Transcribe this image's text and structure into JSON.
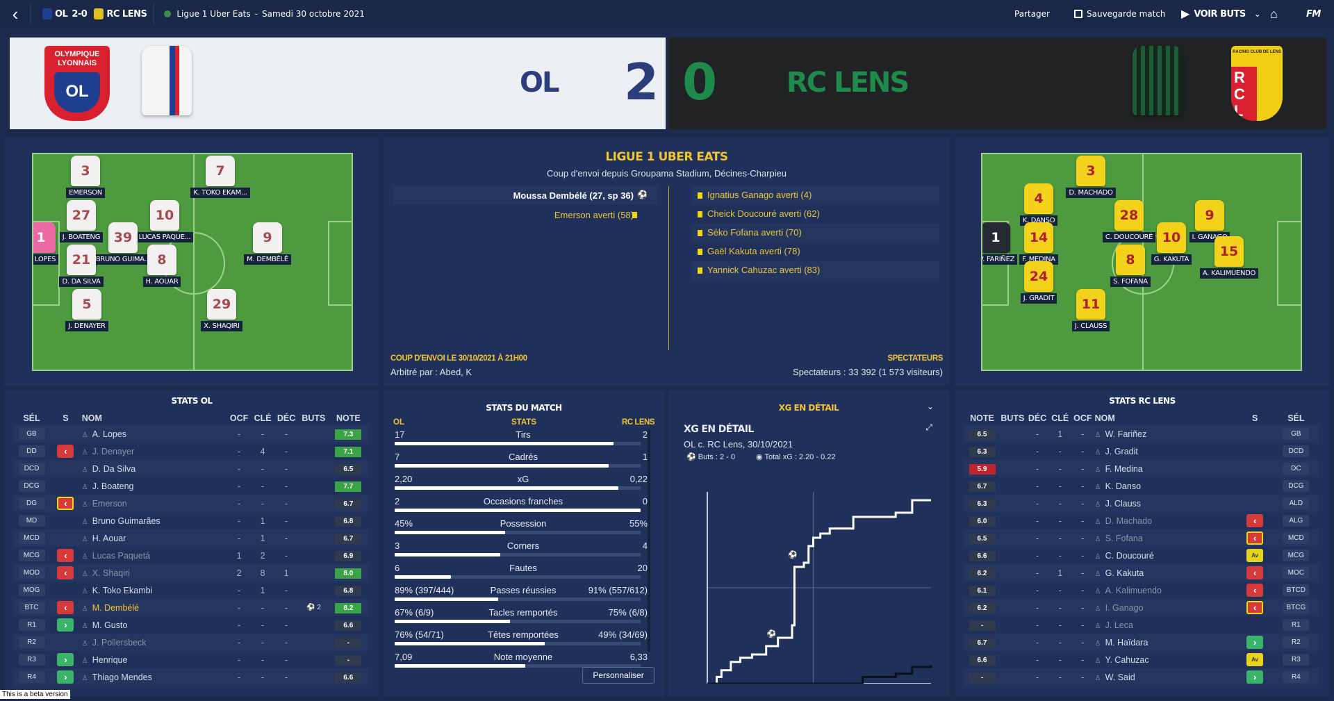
{
  "topbar": {
    "home_short": "OL",
    "score": "2-0",
    "away_short": "RC LENS",
    "competition": "Ligue 1 Uber Eats",
    "date": "Samedi 30 octobre 2021",
    "share": "Partager",
    "save": "Sauvegarde match",
    "watch": "VOIR BUTS",
    "fm": "FM"
  },
  "scoreboard": {
    "home_name": "OL",
    "home_score": "2",
    "away_score": "0",
    "away_name": "RC LENS",
    "home_crest": "OLYMPIQUE LYONNAIS",
    "away_crest": "RACING CLUB DE LENS"
  },
  "colors": {
    "bg": "#1b2a4d",
    "panel": "#1f305a",
    "gold": "#f4c430",
    "pitch": "#4d9a3f",
    "lens_green": "#1e8a4c"
  },
  "home_lineup": [
    {
      "n": "3",
      "name": "EMERSON"
    },
    {
      "n": "7",
      "name": "K. TOKO EKAM..."
    },
    {
      "n": "27",
      "name": "J. BOATENG"
    },
    {
      "n": "10",
      "name": "LUCAS PAQUE..."
    },
    {
      "n": "39",
      "name": "BRUNO GUIMA..."
    },
    {
      "n": "1",
      "name": "A. LOPES"
    },
    {
      "n": "21",
      "name": "D. DA SILVA"
    },
    {
      "n": "8",
      "name": "H. AOUAR"
    },
    {
      "n": "9",
      "name": "M. DEMBÉLÉ"
    },
    {
      "n": "5",
      "name": "J. DENAYER"
    },
    {
      "n": "29",
      "name": "X. SHAQIRI"
    }
  ],
  "away_lineup": [
    {
      "n": "3",
      "name": "D. MACHADO"
    },
    {
      "n": "4",
      "name": "K. DANSO"
    },
    {
      "n": "28",
      "name": "C. DOUCOURÉ"
    },
    {
      "n": "9",
      "name": "I. GANAGO"
    },
    {
      "n": "1",
      "name": "W. FARIÑEZ"
    },
    {
      "n": "14",
      "name": "F. MEDINA"
    },
    {
      "n": "10",
      "name": "G. KAKUTA"
    },
    {
      "n": "15",
      "name": "A. KALIMUENDO"
    },
    {
      "n": "8",
      "name": "S. FOFANA"
    },
    {
      "n": "24",
      "name": "J. GRADIT"
    },
    {
      "n": "11",
      "name": "J. CLAUSS"
    }
  ],
  "match_info": {
    "title": "LIGUE 1 UBER EATS",
    "subtitle": "Coup d'envoi depuis Groupama Stadium, Décines-Charpieu",
    "home_events": [
      "Moussa Dembélé (27, sp 36)",
      "Emerson averti (58)"
    ],
    "away_events": [
      "Ignatius Ganago averti (4)",
      "Cheick Doucouré averti (62)",
      "Séko Fofana averti (70)",
      "Gaël Kakuta averti (78)",
      "Yannick Cahuzac averti (83)"
    ],
    "kickoff_label": "COUP D'ENVOI LE 30/10/2021 À 21H00",
    "referee": "Arbitré par : Abed, K",
    "spect_label": "SPECTATEURS",
    "spectators": "Spectateurs : 33 392 (1 573 visiteurs)"
  },
  "home_stats": {
    "title": "STATS OL",
    "cols": [
      "SÉL",
      "S",
      "NOM",
      "OCF",
      "CLÉ",
      "DÉC",
      "BUTS",
      "NOTE"
    ],
    "rows": [
      {
        "pos": "GB",
        "arrow": "",
        "name": "A. Lopes",
        "ocf": "-",
        "cle": "-",
        "dec": "-",
        "buts": "",
        "note": "7.3",
        "nc": "g",
        "dim": false
      },
      {
        "pos": "DD",
        "arrow": "out",
        "name": "J. Denayer",
        "ocf": "-",
        "cle": "4",
        "dec": "-",
        "buts": "",
        "note": "7.1",
        "nc": "g",
        "dim": true
      },
      {
        "pos": "DCD",
        "arrow": "",
        "name": "D. Da Silva",
        "ocf": "-",
        "cle": "-",
        "dec": "-",
        "buts": "",
        "note": "6.5",
        "nc": "d",
        "dim": false
      },
      {
        "pos": "DCG",
        "arrow": "",
        "name": "J. Boateng",
        "ocf": "-",
        "cle": "-",
        "dec": "-",
        "buts": "",
        "note": "7.7",
        "nc": "g",
        "dim": false
      },
      {
        "pos": "DG",
        "arrow": "outy",
        "name": "Emerson",
        "ocf": "-",
        "cle": "-",
        "dec": "-",
        "buts": "",
        "note": "6.7",
        "nc": "d",
        "dim": true
      },
      {
        "pos": "MD",
        "arrow": "",
        "name": "Bruno Guimarães",
        "ocf": "-",
        "cle": "1",
        "dec": "-",
        "buts": "",
        "note": "6.8",
        "nc": "d",
        "dim": false
      },
      {
        "pos": "MCD",
        "arrow": "",
        "name": "H. Aouar",
        "ocf": "-",
        "cle": "1",
        "dec": "-",
        "buts": "",
        "note": "6.7",
        "nc": "d",
        "dim": false
      },
      {
        "pos": "MCG",
        "arrow": "out",
        "name": "Lucas Paquetá",
        "ocf": "1",
        "cle": "2",
        "dec": "-",
        "buts": "",
        "note": "6.9",
        "nc": "d",
        "dim": true
      },
      {
        "pos": "MOD",
        "arrow": "out",
        "name": "X. Shaqiri",
        "ocf": "2",
        "cle": "8",
        "dec": "1",
        "buts": "",
        "note": "8.0",
        "nc": "g",
        "dim": true
      },
      {
        "pos": "MOG",
        "arrow": "",
        "name": "K. Toko Ekambi",
        "ocf": "-",
        "cle": "1",
        "dec": "-",
        "buts": "",
        "note": "6.8",
        "nc": "d",
        "dim": false
      },
      {
        "pos": "BTC",
        "arrow": "out",
        "name": "M. Dembélé",
        "ocf": "-",
        "cle": "-",
        "dec": "-",
        "buts": "2",
        "note": "8.2",
        "nc": "g",
        "dim": false,
        "gold": true
      },
      {
        "pos": "R1",
        "arrow": "in",
        "name": "M. Gusto",
        "ocf": "-",
        "cle": "-",
        "dec": "-",
        "buts": "",
        "note": "6.6",
        "nc": "d",
        "dim": false
      },
      {
        "pos": "R2",
        "arrow": "",
        "name": "J. Pollersbeck",
        "ocf": "-",
        "cle": "-",
        "dec": "-",
        "buts": "",
        "note": "-",
        "nc": "d",
        "dim": true
      },
      {
        "pos": "R3",
        "arrow": "in",
        "name": "Henrique",
        "ocf": "-",
        "cle": "-",
        "dec": "-",
        "buts": "",
        "note": "-",
        "nc": "d",
        "dim": false
      },
      {
        "pos": "R4",
        "arrow": "in",
        "name": "Thiago Mendes",
        "ocf": "-",
        "cle": "-",
        "dec": "-",
        "buts": "",
        "note": "6.6",
        "nc": "d",
        "dim": false
      }
    ]
  },
  "match_stats": {
    "title": "STATS DU MATCH",
    "home": "OL",
    "label": "STATS",
    "away": "RC LENS",
    "customize": "Personnaliser",
    "rows": [
      {
        "label": "Tirs",
        "h": "17",
        "a": "2",
        "hf": 0.89
      },
      {
        "label": "Cadrés",
        "h": "7",
        "a": "1",
        "hf": 0.87
      },
      {
        "label": "xG",
        "h": "2,20",
        "a": "0,22",
        "hf": 0.91
      },
      {
        "label": "Occasions franches",
        "h": "2",
        "a": "0",
        "hf": 1.0
      },
      {
        "label": "Possession",
        "h": "45%",
        "a": "55%",
        "hf": 0.45
      },
      {
        "label": "Corners",
        "h": "3",
        "a": "4",
        "hf": 0.43
      },
      {
        "label": "Fautes",
        "h": "6",
        "a": "20",
        "hf": 0.23
      },
      {
        "label": "Passes réussies",
        "h": "89% (397/444)",
        "a": "91% (557/612)",
        "hf": 0.42
      },
      {
        "label": "Tacles remportés",
        "h": "67% (6/9)",
        "a": "75% (6/8)",
        "hf": 0.47
      },
      {
        "label": "Têtes remportées",
        "h": "76% (54/71)",
        "a": "49% (34/69)",
        "hf": 0.61
      },
      {
        "label": "Note moyenne",
        "h": "7,09",
        "a": "6,33",
        "hf": 0.53
      }
    ]
  },
  "xg": {
    "header": "XG EN DÉTAIL",
    "title": "XG EN DÉTAIL",
    "match": "OL c. RC Lens, 30/10/2021",
    "goals": "Buts : 2 - 0",
    "total": "Total xG : 2.20 - 0.22"
  },
  "chart_data": {
    "type": "line",
    "title": "XG EN DÉTAIL",
    "xlabel": "",
    "ylabel": "",
    "x": "minutes",
    "ylim": [
      0,
      2.3
    ],
    "xlim": [
      0,
      95
    ],
    "series": [
      {
        "name": "OL",
        "values": [
          [
            0,
            0
          ],
          [
            4,
            0.08
          ],
          [
            6,
            0.16
          ],
          [
            10,
            0.26
          ],
          [
            14,
            0.31
          ],
          [
            19,
            0.35
          ],
          [
            25,
            0.45
          ],
          [
            30,
            0.55
          ],
          [
            36,
            0.7
          ],
          [
            37,
            1.4
          ],
          [
            41,
            1.45
          ],
          [
            43,
            1.65
          ],
          [
            45,
            1.75
          ],
          [
            48,
            1.8
          ],
          [
            52,
            1.86
          ],
          [
            62,
            2.0
          ],
          [
            80,
            2.05
          ],
          [
            87,
            2.2
          ],
          [
            95,
            2.2
          ]
        ]
      },
      {
        "name": "RC LENS",
        "values": [
          [
            0,
            0
          ],
          [
            65,
            0
          ],
          [
            66,
            0.08
          ],
          [
            80,
            0.12
          ],
          [
            87,
            0.2
          ],
          [
            95,
            0.22
          ]
        ]
      }
    ],
    "goals": [
      [
        27,
        0.6
      ],
      [
        36,
        1.55
      ]
    ]
  },
  "away_stats": {
    "title": "STATS RC LENS",
    "cols": [
      "NOTE",
      "BUTS",
      "DÉC",
      "CLÉ",
      "OCF",
      "NOM",
      "S",
      "SÉL"
    ],
    "rows": [
      {
        "note": "6.5",
        "nc": "d",
        "buts": "",
        "dec": "-",
        "cle": "1",
        "ocf": "-",
        "name": "W. Fariñez",
        "arrow": "",
        "pos": "GB",
        "dim": false
      },
      {
        "note": "6.3",
        "nc": "d",
        "buts": "",
        "dec": "-",
        "cle": "-",
        "ocf": "-",
        "name": "J. Gradit",
        "arrow": "",
        "pos": "DCD",
        "dim": false
      },
      {
        "note": "5.9",
        "nc": "r",
        "buts": "",
        "dec": "-",
        "cle": "-",
        "ocf": "-",
        "name": "F. Medina",
        "arrow": "",
        "pos": "DC",
        "dim": false
      },
      {
        "note": "6.7",
        "nc": "d",
        "buts": "",
        "dec": "-",
        "cle": "-",
        "ocf": "-",
        "name": "K. Danso",
        "arrow": "",
        "pos": "DCG",
        "dim": false
      },
      {
        "note": "6.3",
        "nc": "d",
        "buts": "",
        "dec": "-",
        "cle": "-",
        "ocf": "-",
        "name": "J. Clauss",
        "arrow": "",
        "pos": "ALD",
        "dim": false
      },
      {
        "note": "6.0",
        "nc": "d",
        "buts": "",
        "dec": "-",
        "cle": "-",
        "ocf": "-",
        "name": "D. Machado",
        "arrow": "out",
        "pos": "ALG",
        "dim": true
      },
      {
        "note": "6.5",
        "nc": "d",
        "buts": "",
        "dec": "-",
        "cle": "-",
        "ocf": "-",
        "name": "S. Fofana",
        "arrow": "outy",
        "pos": "MCD",
        "dim": true
      },
      {
        "note": "6.6",
        "nc": "d",
        "buts": "",
        "dec": "-",
        "cle": "-",
        "ocf": "-",
        "name": "C. Doucouré",
        "arrow": "av",
        "pos": "MCG",
        "dim": false
      },
      {
        "note": "6.2",
        "nc": "d",
        "buts": "",
        "dec": "-",
        "cle": "1",
        "ocf": "-",
        "name": "G. Kakuta",
        "arrow": "out",
        "pos": "MOC",
        "dim": false
      },
      {
        "note": "6.1",
        "nc": "d",
        "buts": "",
        "dec": "-",
        "cle": "-",
        "ocf": "-",
        "name": "A. Kalimuendo",
        "arrow": "out",
        "pos": "BTCD",
        "dim": true
      },
      {
        "note": "6.2",
        "nc": "d",
        "buts": "",
        "dec": "-",
        "cle": "-",
        "ocf": "-",
        "name": "I. Ganago",
        "arrow": "outy",
        "pos": "BTCG",
        "dim": true
      },
      {
        "note": "-",
        "nc": "d",
        "buts": "",
        "dec": "-",
        "cle": "-",
        "ocf": "-",
        "name": "J. Leca",
        "arrow": "",
        "pos": "R1",
        "dim": true
      },
      {
        "note": "6.7",
        "nc": "d",
        "buts": "",
        "dec": "-",
        "cle": "-",
        "ocf": "-",
        "name": "M. Haïdara",
        "arrow": "in",
        "pos": "R2",
        "dim": false
      },
      {
        "note": "6.6",
        "nc": "d",
        "buts": "",
        "dec": "-",
        "cle": "-",
        "ocf": "-",
        "name": "Y. Cahuzac",
        "arrow": "av",
        "pos": "R3",
        "dim": false
      },
      {
        "note": "-",
        "nc": "d",
        "buts": "",
        "dec": "-",
        "cle": "-",
        "ocf": "-",
        "name": "W. Said",
        "arrow": "in",
        "pos": "R4",
        "dim": false
      }
    ]
  },
  "beta": "This is a beta version"
}
